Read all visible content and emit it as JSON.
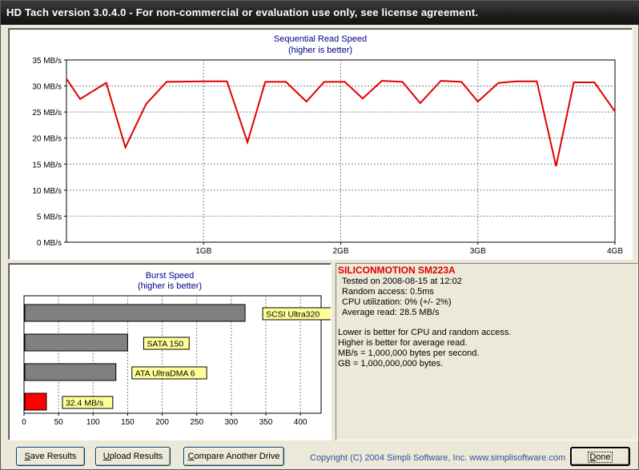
{
  "window": {
    "title": "HD Tach version 3.0.4.0  - For non-commercial or evaluation use only, see license agreement."
  },
  "seq_chart_title_1": "Sequential Read Speed",
  "seq_chart_title_2": "(higher is better)",
  "burst_chart_title_1": "Burst Speed",
  "burst_chart_title_2": "(higher is better)",
  "chart_data": [
    {
      "type": "line",
      "title": "Sequential Read Speed",
      "subtitle": "(higher is better)",
      "y_tick_labels": [
        "0 MB/s",
        "5 MB/s",
        "10 MB/s",
        "15 MB/s",
        "20 MB/s",
        "25 MB/s",
        "30 MB/s",
        "35 MB/s"
      ],
      "x_tick_labels": [
        "1GB",
        "2GB",
        "3GB",
        "4GB"
      ],
      "ylim": [
        0,
        35
      ],
      "xlim": [
        0,
        4
      ],
      "grid": true,
      "series": [
        {
          "color": "#e00000",
          "x": [
            0.0,
            0.1,
            0.29,
            0.43,
            0.58,
            0.73,
            1.03,
            1.17,
            1.32,
            1.45,
            1.6,
            1.75,
            1.88,
            2.03,
            2.16,
            2.3,
            2.45,
            2.58,
            2.73,
            2.88,
            3.0,
            3.15,
            3.28,
            3.43,
            3.57,
            3.7,
            3.85,
            4.0
          ],
          "y": [
            31.4,
            27.5,
            30.6,
            18.2,
            26.5,
            30.8,
            30.9,
            30.9,
            19.2,
            30.8,
            30.8,
            27.0,
            30.8,
            30.8,
            27.6,
            31.0,
            30.8,
            26.7,
            31.0,
            30.8,
            27.0,
            30.6,
            30.9,
            30.9,
            14.6,
            30.7,
            30.7,
            25.1
          ]
        }
      ]
    },
    {
      "type": "bar",
      "title": "Burst Speed",
      "subtitle": "(higher is better)",
      "orientation": "horizontal",
      "x_tick_labels": [
        "0",
        "50",
        "100",
        "150",
        "200",
        "250",
        "300",
        "350",
        "400"
      ],
      "xlim": [
        0,
        430
      ],
      "categories": [
        "SCSI Ultra320",
        "SATA 150",
        "ATA UltraDMA 6",
        "32.4 MB/s"
      ],
      "values": [
        320,
        150,
        133,
        32.4
      ],
      "colors": [
        "#808080",
        "#808080",
        "#808080",
        "#ff0000"
      ]
    }
  ],
  "info": {
    "device": "SILICONMOTION SM223A",
    "tested_on": "Tested on 2008-08-15 at 12:02",
    "random_access": "Random access: 0.5ms",
    "cpu": "CPU utilization: 0% (+/- 2%)",
    "avg_read": "Average read: 28.5 MB/s",
    "note1": "Lower is better for CPU and random access.",
    "note2": "Higher is better for average read.",
    "note3": "MB/s = 1,000,000 bytes per second.",
    "note4": "GB = 1,000,000,000 bytes."
  },
  "buttons": {
    "save_prefix": "S",
    "save_rest": "ave Results",
    "upload_prefix": "U",
    "upload_rest": "pload Results",
    "compare_prefix": "C",
    "compare_rest": "ompare Another Drive",
    "done_prefix": "D",
    "done_rest": "one"
  },
  "copyright": "Copyright (C) 2004 Simpli Software, Inc. www.simplisoftware.com"
}
